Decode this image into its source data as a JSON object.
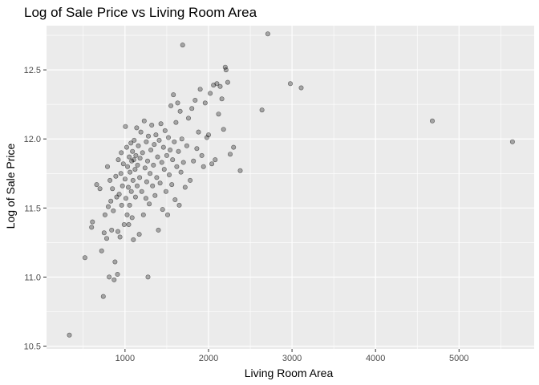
{
  "chart_data": {
    "type": "scatter",
    "title": "Log of Sale Price vs Living Room Area",
    "xlabel": "Living Room Area",
    "ylabel": "Log of Sale Price",
    "xlim": [
      60,
      5900
    ],
    "ylim": [
      10.48,
      12.82
    ],
    "xticks": [
      1000,
      2000,
      3000,
      4000,
      5000
    ],
    "xtick_labels": [
      "1000",
      "2000",
      "3000",
      "4000",
      "5000"
    ],
    "yticks": [
      10.5,
      11.0,
      11.5,
      12.0,
      12.5
    ],
    "ytick_labels": [
      "10.5",
      "11.0",
      "11.5",
      "12.0",
      "12.5"
    ],
    "grid": true,
    "colors": {
      "panel": "#ebebeb",
      "grid": "#ffffff",
      "point_fill": "#000000",
      "point_alpha": 0.3
    },
    "points": [
      [
        334,
        10.58
      ],
      [
        520,
        11.14
      ],
      [
        600,
        11.36
      ],
      [
        610,
        11.4
      ],
      [
        660,
        11.67
      ],
      [
        700,
        11.64
      ],
      [
        720,
        11.19
      ],
      [
        740,
        10.86
      ],
      [
        750,
        11.32
      ],
      [
        760,
        11.45
      ],
      [
        780,
        11.28
      ],
      [
        790,
        11.8
      ],
      [
        800,
        11.51
      ],
      [
        810,
        11.0
      ],
      [
        820,
        11.7
      ],
      [
        830,
        11.55
      ],
      [
        840,
        11.34
      ],
      [
        850,
        11.64
      ],
      [
        860,
        11.48
      ],
      [
        870,
        10.98
      ],
      [
        880,
        11.11
      ],
      [
        890,
        11.73
      ],
      [
        900,
        11.58
      ],
      [
        910,
        11.02
      ],
      [
        915,
        11.33
      ],
      [
        920,
        11.85
      ],
      [
        930,
        11.6
      ],
      [
        940,
        11.29
      ],
      [
        950,
        11.75
      ],
      [
        955,
        11.9
      ],
      [
        960,
        11.52
      ],
      [
        970,
        11.66
      ],
      [
        980,
        11.82
      ],
      [
        990,
        11.38
      ],
      [
        1000,
        11.71
      ],
      [
        1005,
        12.09
      ],
      [
        1010,
        11.57
      ],
      [
        1020,
        11.94
      ],
      [
        1025,
        11.45
      ],
      [
        1030,
        11.8
      ],
      [
        1040,
        11.65
      ],
      [
        1045,
        11.38
      ],
      [
        1050,
        11.87
      ],
      [
        1055,
        11.52
      ],
      [
        1060,
        11.76
      ],
      [
        1070,
        11.97
      ],
      [
        1075,
        11.62
      ],
      [
        1080,
        11.84
      ],
      [
        1085,
        11.43
      ],
      [
        1090,
        11.91
      ],
      [
        1095,
        11.7
      ],
      [
        1100,
        11.27
      ],
      [
        1105,
        11.85
      ],
      [
        1110,
        11.99
      ],
      [
        1120,
        11.78
      ],
      [
        1125,
        11.58
      ],
      [
        1130,
        11.88
      ],
      [
        1140,
        12.08
      ],
      [
        1145,
        11.66
      ],
      [
        1150,
        11.81
      ],
      [
        1160,
        11.95
      ],
      [
        1170,
        11.31
      ],
      [
        1175,
        11.72
      ],
      [
        1180,
        11.86
      ],
      [
        1190,
        12.05
      ],
      [
        1200,
        11.62
      ],
      [
        1210,
        11.9
      ],
      [
        1220,
        11.45
      ],
      [
        1230,
        12.13
      ],
      [
        1240,
        11.79
      ],
      [
        1250,
        11.57
      ],
      [
        1255,
        11.98
      ],
      [
        1260,
        11.69
      ],
      [
        1270,
        11.84
      ],
      [
        1275,
        11.0
      ],
      [
        1280,
        12.02
      ],
      [
        1290,
        11.53
      ],
      [
        1300,
        11.75
      ],
      [
        1310,
        11.92
      ],
      [
        1320,
        12.1
      ],
      [
        1330,
        11.66
      ],
      [
        1340,
        11.81
      ],
      [
        1350,
        11.96
      ],
      [
        1360,
        11.59
      ],
      [
        1370,
        12.03
      ],
      [
        1380,
        11.72
      ],
      [
        1390,
        11.87
      ],
      [
        1400,
        11.34
      ],
      [
        1410,
        11.99
      ],
      [
        1420,
        11.68
      ],
      [
        1430,
        12.11
      ],
      [
        1440,
        11.83
      ],
      [
        1450,
        11.49
      ],
      [
        1460,
        11.94
      ],
      [
        1470,
        11.78
      ],
      [
        1480,
        12.06
      ],
      [
        1490,
        11.62
      ],
      [
        1500,
        11.88
      ],
      [
        1510,
        11.45
      ],
      [
        1520,
        12.01
      ],
      [
        1530,
        11.74
      ],
      [
        1540,
        11.92
      ],
      [
        1550,
        12.24
      ],
      [
        1560,
        11.67
      ],
      [
        1570,
        11.85
      ],
      [
        1580,
        12.32
      ],
      [
        1590,
        11.98
      ],
      [
        1600,
        11.56
      ],
      [
        1610,
        12.12
      ],
      [
        1620,
        11.8
      ],
      [
        1630,
        12.26
      ],
      [
        1640,
        11.91
      ],
      [
        1650,
        11.52
      ],
      [
        1660,
        12.2
      ],
      [
        1670,
        11.76
      ],
      [
        1680,
        12.0
      ],
      [
        1690,
        12.68
      ],
      [
        1700,
        11.83
      ],
      [
        1720,
        11.65
      ],
      [
        1740,
        11.95
      ],
      [
        1760,
        12.15
      ],
      [
        1780,
        11.7
      ],
      [
        1800,
        12.22
      ],
      [
        1820,
        11.84
      ],
      [
        1840,
        12.28
      ],
      [
        1860,
        11.93
      ],
      [
        1880,
        12.05
      ],
      [
        1900,
        12.36
      ],
      [
        1920,
        11.88
      ],
      [
        1940,
        11.8
      ],
      [
        1960,
        12.26
      ],
      [
        1980,
        12.01
      ],
      [
        2000,
        12.03
      ],
      [
        2020,
        12.33
      ],
      [
        2040,
        11.82
      ],
      [
        2060,
        12.39
      ],
      [
        2080,
        11.85
      ],
      [
        2100,
        12.4
      ],
      [
        2120,
        12.18
      ],
      [
        2140,
        12.38
      ],
      [
        2160,
        12.29
      ],
      [
        2180,
        12.07
      ],
      [
        2200,
        12.52
      ],
      [
        2210,
        12.5
      ],
      [
        2230,
        12.41
      ],
      [
        2260,
        11.89
      ],
      [
        2300,
        11.94
      ],
      [
        2380,
        11.77
      ],
      [
        2640,
        12.21
      ],
      [
        2710,
        12.76
      ],
      [
        2980,
        12.4
      ],
      [
        3110,
        12.37
      ],
      [
        4680,
        12.13
      ],
      [
        5640,
        11.98
      ]
    ]
  }
}
